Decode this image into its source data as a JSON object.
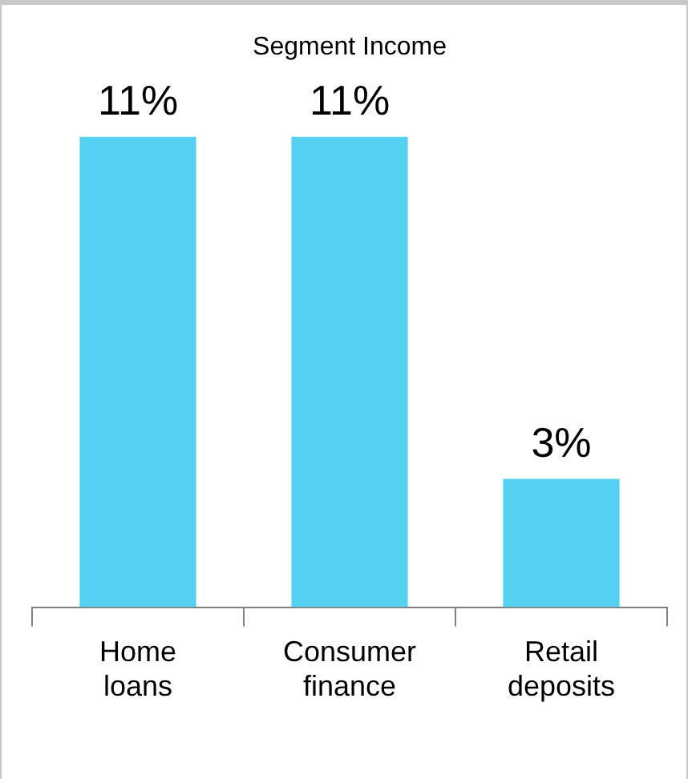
{
  "chart_data": {
    "type": "bar",
    "title": "Segment Income",
    "categories": [
      "Home loans",
      "Consumer finance",
      "Retail deposits"
    ],
    "values": [
      11,
      11,
      3
    ],
    "value_labels": [
      "11%",
      "11%",
      "3%"
    ],
    "color": "#56d0f0",
    "grid": false,
    "legend": false
  }
}
